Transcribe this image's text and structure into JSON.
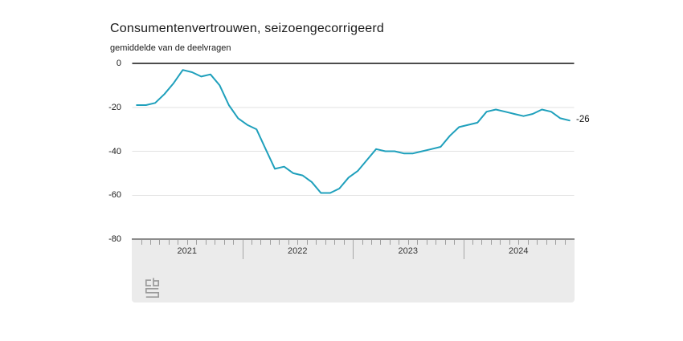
{
  "chart": {
    "title": "Consumentenvertrouwen, seizoengecorrigeerd",
    "subtitle": "gemiddelde van de deelvragen",
    "end_label": "-26"
  },
  "colors": {
    "line": "#1fa0bc",
    "grid": "#e2e2e2",
    "zero_axis": "#4d4d4d",
    "footer_bg": "#ebebeb",
    "footer_border": "#8c8c8c",
    "tick": "#9e9e9e",
    "text": "#1a1a1a",
    "year_text": "#333333",
    "logo": "#9a9a9a"
  },
  "y_axis": {
    "tick_labels": [
      "0",
      "-20",
      "-40",
      "-60",
      "-80"
    ],
    "values": [
      0,
      -20,
      -40,
      -60,
      -80
    ]
  },
  "x_axis": {
    "year_labels": [
      "2021",
      "2022",
      "2023",
      "2024"
    ],
    "months_per_year": 12
  },
  "chart_data": {
    "type": "line",
    "title": "Consumentenvertrouwen, seizoengecorrigeerd",
    "subtitle": "gemiddelde van de deelvragen",
    "x_start": "2021-01",
    "x_freq": "monthly",
    "x_years": [
      "2021",
      "2022",
      "2023",
      "2024"
    ],
    "ylim": [
      -80,
      0
    ],
    "grid": "horizontal",
    "legend": "none",
    "end_annotation": "-26",
    "series": [
      {
        "name": "Consumentenvertrouwen, seizoengecorrigeerd (gemiddelde van de deelvragen)",
        "values": [
          -19,
          -19,
          -18,
          -14,
          -9,
          -3,
          -4,
          -6,
          -5,
          -10,
          -19,
          -25,
          -28,
          -30,
          -39,
          -48,
          -47,
          -50,
          -51,
          -54,
          -59,
          -59,
          -57,
          -52,
          -49,
          -44,
          -39,
          -40,
          -40,
          -41,
          -41,
          -40,
          -39,
          -38,
          -33,
          -29,
          -28,
          -27,
          -22,
          -21,
          -22,
          -23,
          -24,
          -23,
          -21,
          -22,
          -25,
          -26
        ]
      }
    ]
  }
}
